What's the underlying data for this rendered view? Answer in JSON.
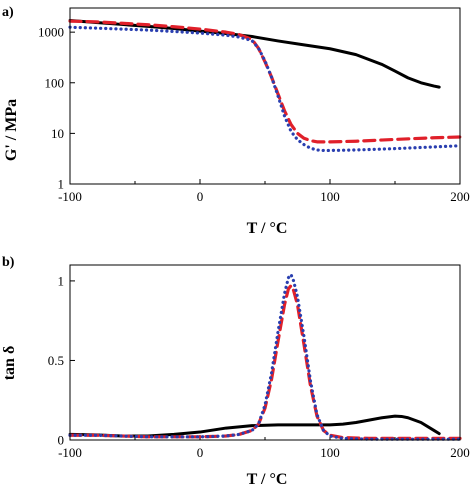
{
  "chart_data": [
    {
      "type": "line",
      "panel_label": "a)",
      "xlabel": "T / °C",
      "ylabel": "G' / MPa",
      "xlim": [
        -100,
        200
      ],
      "ylim": [
        1,
        3000
      ],
      "yscale": "log",
      "xticks": [
        -100,
        0,
        100,
        200
      ],
      "xtick_labels": [
        "-100",
        "0",
        "100",
        "200"
      ],
      "yticks": [
        1,
        10,
        100,
        1000
      ],
      "ytick_labels": [
        "1",
        "10",
        "100",
        "1000"
      ],
      "grid": false,
      "series": [
        {
          "color": "#000000",
          "dash": "solid",
          "x": [
            -100,
            -80,
            -60,
            -40,
            -20,
            0,
            20,
            40,
            60,
            80,
            100,
            120,
            140,
            150,
            160,
            170,
            180,
            184
          ],
          "y": [
            1700,
            1550,
            1420,
            1300,
            1180,
            1050,
            940,
            820,
            670,
            560,
            470,
            360,
            230,
            170,
            125,
            100,
            86,
            82
          ]
        },
        {
          "color": "#e0202a",
          "dash": "dashed",
          "x": [
            -100,
            -80,
            -60,
            -40,
            -20,
            0,
            20,
            30,
            40,
            45,
            50,
            55,
            60,
            65,
            70,
            75,
            80,
            85,
            90,
            100,
            120,
            150,
            180,
            200
          ],
          "y": [
            1650,
            1600,
            1500,
            1400,
            1280,
            1150,
            1000,
            900,
            720,
            480,
            260,
            130,
            60,
            28,
            15,
            10,
            8,
            7.2,
            6.8,
            6.8,
            7.0,
            7.6,
            8.2,
            8.5
          ]
        },
        {
          "color": "#2a3fb0",
          "dash": "dotted",
          "x": [
            -100,
            -80,
            -60,
            -40,
            -20,
            0,
            20,
            30,
            40,
            45,
            50,
            55,
            60,
            65,
            70,
            75,
            80,
            85,
            90,
            95,
            100,
            120,
            150,
            180,
            200
          ],
          "y": [
            1250,
            1200,
            1150,
            1100,
            1030,
            960,
            870,
            800,
            680,
            480,
            270,
            130,
            55,
            22,
            11,
            7.5,
            6,
            5.1,
            4.7,
            4.6,
            4.6,
            4.7,
            5.0,
            5.4,
            5.7
          ]
        }
      ]
    },
    {
      "type": "line",
      "panel_label": "b)",
      "xlabel": "T / °C",
      "ylabel": "tan δ",
      "xlim": [
        -100,
        200
      ],
      "ylim": [
        0,
        1.1
      ],
      "xticks": [
        -100,
        0,
        100,
        200
      ],
      "xtick_labels": [
        "-100",
        "0",
        "100",
        "200"
      ],
      "yticks": [
        0,
        0.5,
        1
      ],
      "ytick_labels": [
        "0",
        "0.5",
        "1"
      ],
      "grid": false,
      "series": [
        {
          "color": "#000000",
          "dash": "solid",
          "x": [
            -100,
            -80,
            -60,
            -40,
            -20,
            0,
            20,
            40,
            60,
            80,
            100,
            110,
            120,
            130,
            140,
            150,
            155,
            160,
            170,
            180,
            184
          ],
          "y": [
            0.035,
            0.032,
            0.025,
            0.025,
            0.035,
            0.05,
            0.075,
            0.09,
            0.095,
            0.095,
            0.095,
            0.1,
            0.11,
            0.125,
            0.14,
            0.15,
            0.148,
            0.14,
            0.11,
            0.06,
            0.04
          ]
        },
        {
          "color": "#e0202a",
          "dash": "dashed",
          "x": [
            -100,
            -80,
            -60,
            -40,
            -20,
            0,
            20,
            30,
            40,
            45,
            50,
            55,
            60,
            65,
            68,
            70,
            72,
            75,
            80,
            85,
            90,
            95,
            100,
            110,
            130,
            160,
            200
          ],
          "y": [
            0.03,
            0.03,
            0.025,
            0.02,
            0.02,
            0.02,
            0.025,
            0.035,
            0.06,
            0.1,
            0.2,
            0.38,
            0.62,
            0.85,
            0.95,
            0.97,
            0.94,
            0.85,
            0.6,
            0.34,
            0.15,
            0.06,
            0.03,
            0.015,
            0.01,
            0.01,
            0.01
          ]
        },
        {
          "color": "#2a3fb0",
          "dash": "dotted",
          "x": [
            -100,
            -80,
            -60,
            -40,
            -20,
            0,
            20,
            30,
            40,
            45,
            50,
            55,
            60,
            65,
            68,
            70,
            72,
            75,
            80,
            85,
            90,
            95,
            100,
            110,
            130,
            160,
            200
          ],
          "y": [
            0.03,
            0.03,
            0.025,
            0.02,
            0.02,
            0.02,
            0.025,
            0.035,
            0.06,
            0.1,
            0.22,
            0.42,
            0.68,
            0.92,
            1.02,
            1.04,
            1.0,
            0.9,
            0.65,
            0.37,
            0.16,
            0.06,
            0.025,
            0.01,
            0.005,
            0.005,
            0.005
          ]
        }
      ]
    }
  ]
}
